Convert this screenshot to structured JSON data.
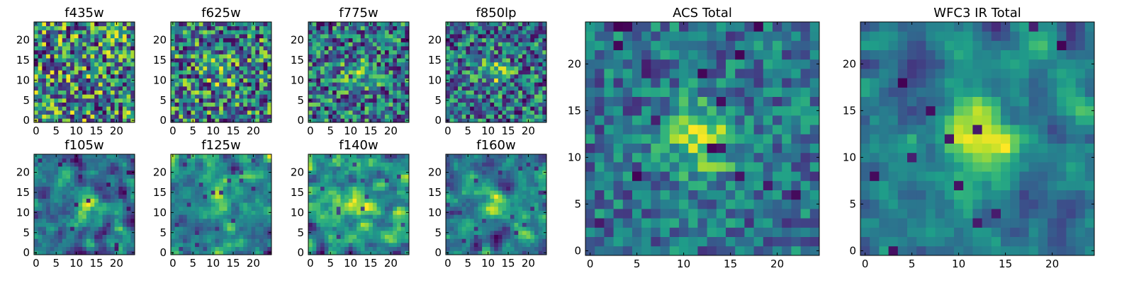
{
  "chart_data": [
    {
      "type": "heatmap",
      "title": "f435w",
      "xlim": [
        0,
        24
      ],
      "ylim": [
        0,
        24
      ],
      "x_ticks": [
        "0",
        "5",
        "10",
        "15",
        "20"
      ],
      "y_ticks": [
        "0",
        "5",
        "10",
        "15",
        "20"
      ],
      "colormap": "viridis",
      "grid": false,
      "seed": 11,
      "blob": 0.0,
      "noise": 1.0,
      "hole_rate": 0.06,
      "smooth": 0
    },
    {
      "type": "heatmap",
      "title": "f625w",
      "xlim": [
        0,
        24
      ],
      "ylim": [
        0,
        24
      ],
      "x_ticks": [
        "0",
        "5",
        "10",
        "15",
        "20"
      ],
      "y_ticks": [
        "0",
        "5",
        "10",
        "15",
        "20"
      ],
      "colormap": "viridis",
      "grid": false,
      "seed": 23,
      "blob": 0.35,
      "noise": 0.9,
      "hole_rate": 0.05,
      "smooth": 0
    },
    {
      "type": "heatmap",
      "title": "f775w",
      "xlim": [
        0,
        24
      ],
      "ylim": [
        0,
        24
      ],
      "x_ticks": [
        "0",
        "5",
        "10",
        "15",
        "20"
      ],
      "y_ticks": [
        "0",
        "5",
        "10",
        "15",
        "20"
      ],
      "colormap": "viridis",
      "grid": false,
      "seed": 37,
      "blob": 0.7,
      "noise": 0.9,
      "hole_rate": 0.04,
      "smooth": 0
    },
    {
      "type": "heatmap",
      "title": "f850lp",
      "xlim": [
        0,
        24
      ],
      "ylim": [
        0,
        24
      ],
      "x_ticks": [
        "0",
        "5",
        "10",
        "15",
        "20"
      ],
      "y_ticks": [
        "0",
        "5",
        "10",
        "15",
        "20"
      ],
      "colormap": "viridis",
      "grid": false,
      "seed": 41,
      "blob": 0.65,
      "noise": 0.9,
      "hole_rate": 0.05,
      "smooth": 0
    },
    {
      "type": "heatmap",
      "title": "f105w",
      "xlim": [
        0,
        24
      ],
      "ylim": [
        0,
        24
      ],
      "x_ticks": [
        "0",
        "5",
        "10",
        "15",
        "20"
      ],
      "y_ticks": [
        "0",
        "5",
        "10",
        "15",
        "20"
      ],
      "colormap": "viridis",
      "grid": false,
      "seed": 53,
      "blob": 0.9,
      "noise": 0.75,
      "hole_rate": 0.03,
      "smooth": 1
    },
    {
      "type": "heatmap",
      "title": "f125w",
      "xlim": [
        0,
        24
      ],
      "ylim": [
        0,
        24
      ],
      "x_ticks": [
        "0",
        "5",
        "10",
        "15",
        "20"
      ],
      "y_ticks": [
        "0",
        "5",
        "10",
        "15",
        "20"
      ],
      "colormap": "viridis",
      "grid": false,
      "seed": 67,
      "blob": 1.0,
      "noise": 0.7,
      "hole_rate": 0.03,
      "smooth": 1
    },
    {
      "type": "heatmap",
      "title": "f140w",
      "xlim": [
        0,
        24
      ],
      "ylim": [
        0,
        24
      ],
      "x_ticks": [
        "0",
        "5",
        "10",
        "15",
        "20"
      ],
      "y_ticks": [
        "0",
        "5",
        "10",
        "15",
        "20"
      ],
      "colormap": "viridis",
      "grid": false,
      "seed": 71,
      "blob": 1.0,
      "noise": 0.8,
      "hole_rate": 0.03,
      "smooth": 1
    },
    {
      "type": "heatmap",
      "title": "f160w",
      "xlim": [
        0,
        24
      ],
      "ylim": [
        0,
        24
      ],
      "x_ticks": [
        "0",
        "5",
        "10",
        "15",
        "20"
      ],
      "y_ticks": [
        "0",
        "5",
        "10",
        "15",
        "20"
      ],
      "colormap": "viridis",
      "grid": false,
      "seed": 83,
      "blob": 0.95,
      "noise": 0.75,
      "hole_rate": 0.03,
      "smooth": 1
    },
    {
      "type": "heatmap",
      "title": "ACS Total",
      "xlim": [
        0,
        24
      ],
      "ylim": [
        0,
        24
      ],
      "x_ticks": [
        "0",
        "5",
        "10",
        "15",
        "20"
      ],
      "y_ticks": [
        "0",
        "5",
        "10",
        "15",
        "20"
      ],
      "colormap": "viridis",
      "grid": false,
      "seed": 97,
      "blob": 1.0,
      "noise": 0.55,
      "hole_rate": 0.02,
      "smooth": 0
    },
    {
      "type": "heatmap",
      "title": "WFC3 IR Total",
      "xlim": [
        0,
        24
      ],
      "ylim": [
        0,
        24
      ],
      "x_ticks": [
        "0",
        "5",
        "10",
        "15",
        "20"
      ],
      "y_ticks": [
        "0",
        "5",
        "10",
        "15",
        "20"
      ],
      "colormap": "viridis",
      "grid": false,
      "seed": 101,
      "blob": 1.2,
      "noise": 0.45,
      "hole_rate": 0.02,
      "smooth": 1
    }
  ]
}
